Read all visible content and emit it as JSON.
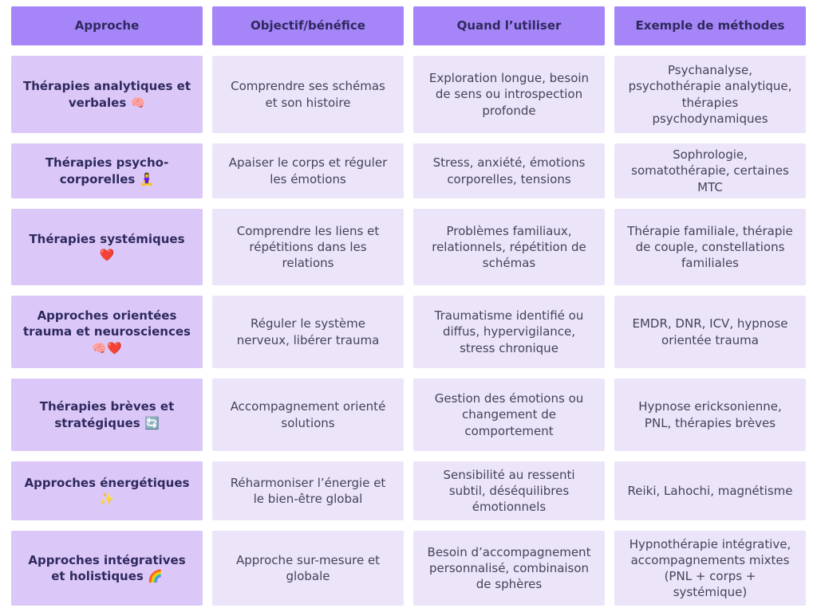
{
  "colors": {
    "header_bg": "#a685f8",
    "row_header_bg": "#dcc8f8",
    "cell_bg": "#ece5fa",
    "header_text": "#2e2a5e",
    "body_text": "#454259",
    "page_bg": "#ffffff"
  },
  "table": {
    "headers": {
      "approche": "Approche",
      "objectif": "Objectif/bénéfice",
      "quand": "Quand l’utiliser",
      "methodes": "Exemple de méthodes"
    },
    "rows": [
      {
        "approche": "Thérapies analytiques et verbales 🧠",
        "objectif": "Comprendre ses schémas et son histoire",
        "quand": "Exploration longue, besoin de sens ou introspection profonde",
        "methodes": "Psychanalyse, psychothérapie analytique, thérapies psychodynamiques"
      },
      {
        "approche": "Thérapies psycho-corporelles 🧘‍♀️",
        "objectif": "Apaiser le corps et réguler les émotions",
        "quand": "Stress, anxiété, émotions corporelles, tensions",
        "methodes": "Sophrologie, somatothérapie, certaines MTC"
      },
      {
        "approche": "Thérapies systémiques ❤️",
        "objectif": "Comprendre les liens et répétitions dans les relations",
        "quand": "Problèmes familiaux, relationnels, répétition de schémas",
        "methodes": "Thérapie familiale, thérapie de couple, constellations familiales"
      },
      {
        "approche": "Approches orientées trauma et neurosciences 🧠❤️",
        "objectif": "Réguler le système nerveux, libérer trauma",
        "quand": "Traumatisme identifié ou diffus, hypervigilance, stress chronique",
        "methodes": "EMDR, DNR, ICV, hypnose orientée trauma"
      },
      {
        "approche": "Thérapies brèves et stratégiques 🔄",
        "objectif": "Accompagnement orienté solutions",
        "quand": "Gestion des émotions ou changement de comportement",
        "methodes": "Hypnose ericksonienne, PNL, thérapies brèves"
      },
      {
        "approche": "Approches énergétiques ✨",
        "objectif": "Réharmoniser l’énergie et le bien-être global",
        "quand": "Sensibilité au ressenti subtil, déséquilibres émotionnels",
        "methodes": "Reiki, Lahochi, magnétisme"
      },
      {
        "approche": "Approches intégratives et holistiques 🌈",
        "objectif": "Approche sur-mesure et globale",
        "quand": "Besoin d’accompagnement personnalisé, combinaison de sphères",
        "methodes": "Hypnothérapie intégrative, accompagnements mixtes (PNL + corps + systémique)"
      }
    ]
  }
}
